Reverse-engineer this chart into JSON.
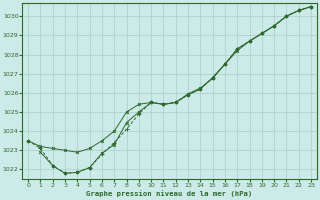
{
  "title": "Graphe pression niveau de la mer (hPa)",
  "bg_color": "#cceae7",
  "grid_color": "#aacccc",
  "line_color": "#2d6a2d",
  "xlim": [
    -0.5,
    23.5
  ],
  "ylim": [
    1021.5,
    1030.7
  ],
  "yticks": [
    1022,
    1023,
    1024,
    1025,
    1026,
    1027,
    1028,
    1029,
    1030
  ],
  "xticks": [
    0,
    1,
    2,
    3,
    4,
    5,
    6,
    7,
    8,
    9,
    10,
    11,
    12,
    13,
    14,
    15,
    16,
    17,
    18,
    19,
    20,
    21,
    22,
    23
  ],
  "series1_x": [
    0,
    1,
    2,
    3,
    4,
    5,
    6,
    7,
    8,
    9,
    10,
    11,
    12,
    13,
    14,
    15,
    16,
    17,
    18,
    19,
    20,
    21,
    22,
    23
  ],
  "series1_y": [
    1023.5,
    1023.2,
    1023.1,
    1023.0,
    1022.9,
    1023.1,
    1023.5,
    1024.0,
    1025.0,
    1025.4,
    1025.5,
    1025.4,
    1025.5,
    1025.9,
    1026.2,
    1026.8,
    1027.5,
    1028.2,
    1028.7,
    1029.1,
    1029.5,
    1030.0,
    1030.3,
    1030.5
  ],
  "series2_x": [
    0,
    1,
    2,
    3,
    4,
    5,
    6,
    7,
    8,
    9,
    10,
    11,
    12,
    13,
    14,
    15,
    16,
    17,
    18,
    19,
    20,
    21,
    22,
    23
  ],
  "series2_y": [
    1023.5,
    1023.1,
    1022.2,
    1021.8,
    1021.85,
    1022.1,
    1022.8,
    1023.4,
    1024.1,
    1024.9,
    1025.5,
    1025.4,
    1025.5,
    1025.9,
    1026.2,
    1026.8,
    1027.5,
    1028.3,
    1028.7,
    1029.1,
    1029.5,
    1030.0,
    1030.3,
    1030.5
  ],
  "series3_x": [
    1,
    2,
    3,
    4,
    5,
    6,
    7,
    8,
    9,
    10,
    11,
    12,
    13,
    14,
    15,
    16,
    17,
    18,
    19,
    20,
    21,
    22,
    23
  ],
  "series3_y": [
    1022.9,
    1022.2,
    1021.8,
    1021.85,
    1022.1,
    1022.85,
    1023.3,
    1024.45,
    1025.0,
    1025.5,
    1025.4,
    1025.5,
    1025.95,
    1026.25,
    1026.75,
    1027.5,
    1028.3,
    1028.7,
    1029.1,
    1029.5,
    1030.0,
    1030.3,
    1030.5
  ]
}
